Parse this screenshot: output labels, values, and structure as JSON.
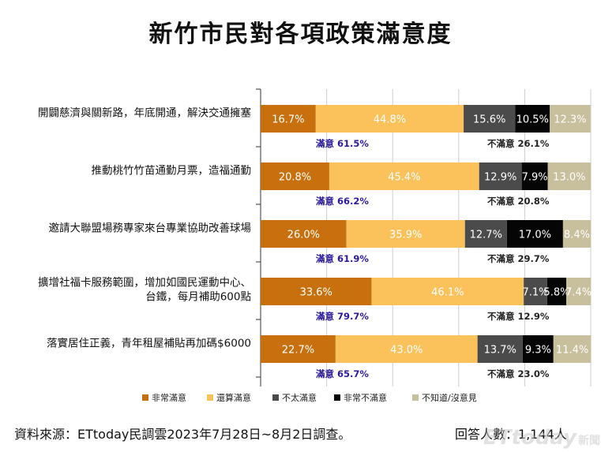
{
  "title": "新竹市民對各項政策滿意度",
  "footer": {
    "source": "資料來源：ETtoday民調雲2023年7月28日~8月2日調查。",
    "respondents": "回答人數：1,144人"
  },
  "watermark": {
    "brand": "ETtoday",
    "sub": "新聞雲"
  },
  "colors": {
    "very_satisfied": "#c8700e",
    "satisfied": "#fbc25c",
    "not_satisfied": "#4b4b4b",
    "very_unsatisfied": "#050505",
    "unknown": "#c8bf9c",
    "summary_sat": "#2a1a9a",
    "summary_unsat": "#222222",
    "gridline": "#cccccc"
  },
  "chart_data": {
    "type": "bar",
    "orientation": "horizontal",
    "stacked": true,
    "xlim": [
      0,
      100
    ],
    "categories": [
      [
        "開闢慈濟與關新路，年底開通，解決交通擁塞"
      ],
      [
        "推動桃竹竹苗通勤月票，造福通勤"
      ],
      [
        "邀請大聯盟場務專家來台專業協助改善球場"
      ],
      [
        "擴增社福卡服務範圍，增加如國民運動中心、",
        "台鐵，每月補助600點"
      ],
      [
        "落實居住正義，青年租屋補貼再加碼$6000"
      ]
    ],
    "series": [
      {
        "name": "非常滿意",
        "values": [
          16.7,
          20.8,
          26.0,
          33.6,
          22.7
        ]
      },
      {
        "name": "還算滿意",
        "values": [
          44.8,
          45.4,
          35.9,
          46.1,
          43.0
        ]
      },
      {
        "name": "不太滿意",
        "values": [
          15.6,
          12.9,
          12.7,
          7.1,
          13.7
        ]
      },
      {
        "name": "非常不滿意",
        "values": [
          10.5,
          7.9,
          17.0,
          5.8,
          9.3
        ]
      },
      {
        "name": "不知道/沒意見",
        "values": [
          12.3,
          13.0,
          8.4,
          7.4,
          11.4
        ]
      }
    ],
    "summary": {
      "satisfied_label": "滿意",
      "unsatisfied_label": "不滿意",
      "satisfied": [
        "61.5%",
        "66.2%",
        "61.9%",
        "79.7%",
        "65.7%"
      ],
      "unsatisfied": [
        "26.1%",
        "20.8%",
        "29.7%",
        "12.9%",
        "23.0%"
      ]
    },
    "legend_position": "bottom",
    "grid": true
  }
}
